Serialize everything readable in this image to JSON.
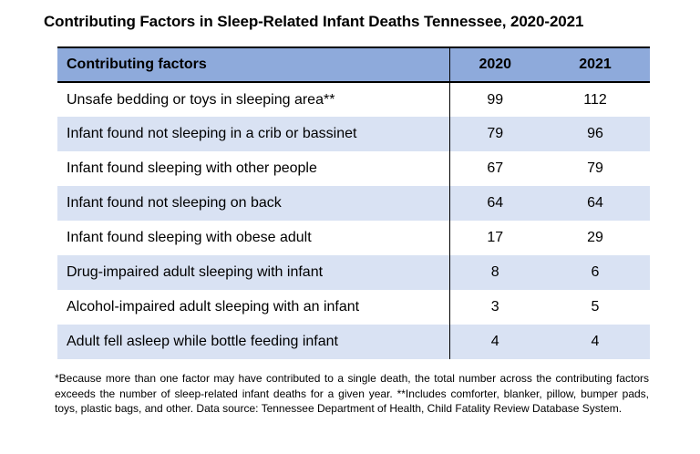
{
  "title": "Contributing Factors in Sleep-Related Infant Deaths Tennessee, 2020-2021",
  "table": {
    "factors_header": "Contributing factors"
  },
  "chart_data": {
    "type": "table",
    "title": "Contributing Factors in Sleep-Related Infant Deaths Tennessee, 2020-2021",
    "categories": [
      "Unsafe bedding or toys in sleeping area**",
      "Infant found not sleeping in a crib or bassinet",
      "Infant found sleeping with other people",
      "Infant found not sleeping on back",
      "Infant found sleeping with obese adult",
      "Drug-impaired adult sleeping with infant",
      "Alcohol-impaired adult sleeping with an infant",
      "Adult fell asleep while bottle feeding infant"
    ],
    "series": [
      {
        "name": "2020",
        "values": [
          99,
          79,
          67,
          64,
          17,
          8,
          3,
          4
        ]
      },
      {
        "name": "2021",
        "values": [
          112,
          96,
          79,
          64,
          29,
          6,
          5,
          4
        ]
      }
    ],
    "legend_position": "none",
    "grid": false
  },
  "colors": {
    "header_bg": "#8EAADB",
    "stripe_bg": "#D9E2F3",
    "border": "#000000",
    "text": "#000000"
  },
  "footnote": "*Because more than one factor may have contributed to a single death, the total number across the contributing factors exceeds the number of sleep-related infant deaths for a given year. **Includes comforter, blanker, pillow, bumper pads, toys, plastic bags, and other. Data source: Tennessee Department of Health, Child Fatality Review Database System."
}
